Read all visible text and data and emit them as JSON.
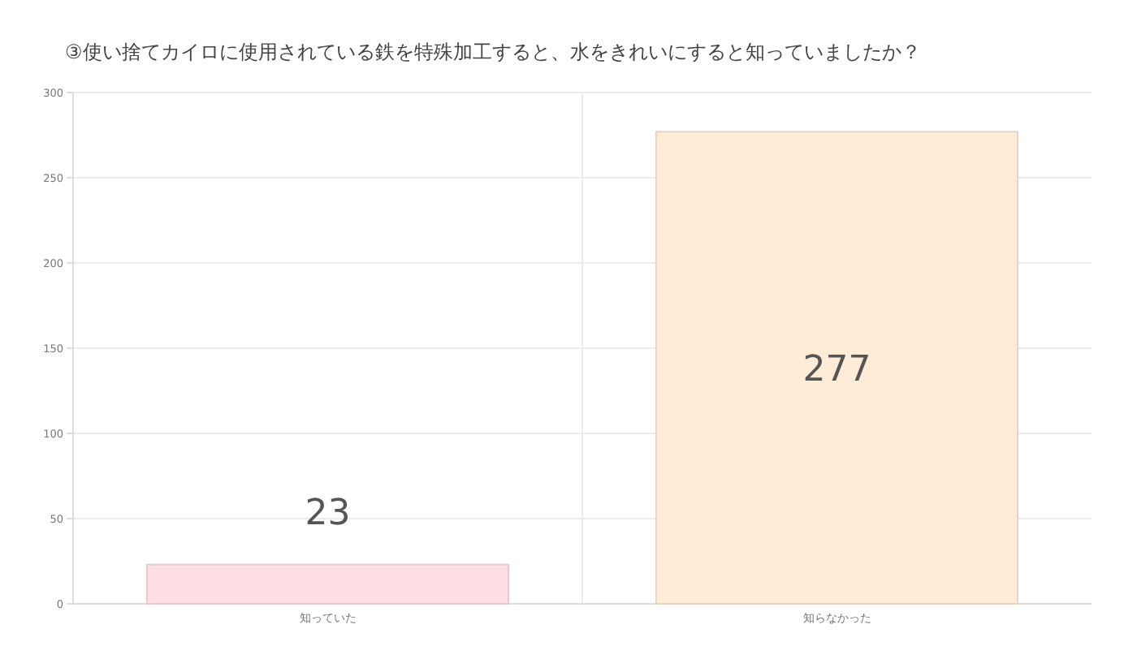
{
  "chart_data": {
    "type": "bar",
    "title": "③使い捨てカイロに使用されている鉄を特殊加工すると、水をきれいにすると知っていましたか？",
    "categories": [
      "知っていた",
      "知らなかった"
    ],
    "values": [
      23,
      277
    ],
    "colors": [
      "#ffdfe6",
      "#ffebd6"
    ],
    "ylim": [
      0,
      300
    ],
    "yticks": [
      0,
      50,
      100,
      150,
      200,
      250,
      300
    ],
    "grid": true,
    "data_labels": true
  }
}
